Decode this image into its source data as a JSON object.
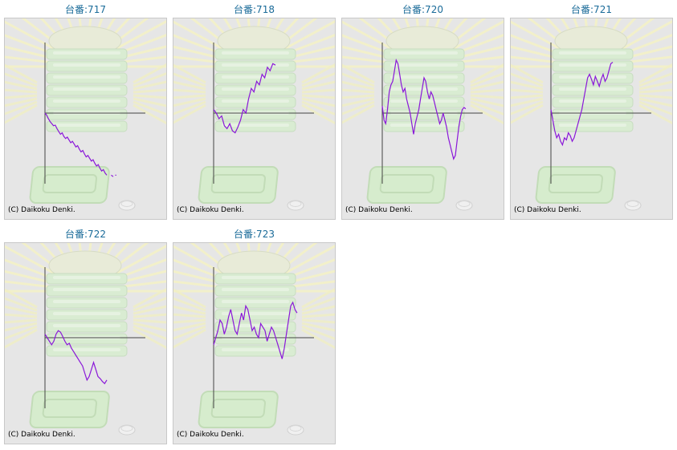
{
  "chart_data": [
    {
      "type": "line",
      "title": "台番:717",
      "xlim": [
        0,
        100
      ],
      "ylim": [
        -100,
        100
      ],
      "y": [
        0,
        -3,
        -8,
        -12,
        -15,
        -18,
        -17,
        -22,
        -26,
        -30,
        -28,
        -33,
        -36,
        -34,
        -38,
        -42,
        -40,
        -44,
        -48,
        -46,
        -51,
        -55,
        -53,
        -58,
        -62,
        -60,
        -64,
        -68,
        -66,
        -71,
        -75,
        -73,
        -78,
        -82,
        -80,
        -85,
        -88
      ],
      "extra": [
        {
          "x": [
            66,
            68
          ],
          "y": [
            -88,
            -90
          ]
        },
        {
          "x": [
            70,
            71
          ],
          "y": [
            -88,
            -88
          ]
        }
      ],
      "copyright": "(C) Daikoku Denki."
    },
    {
      "type": "line",
      "title": "台番:718",
      "xlim": [
        0,
        100
      ],
      "ylim": [
        -100,
        100
      ],
      "y": [
        5,
        0,
        -8,
        -4,
        -18,
        -22,
        -15,
        -25,
        -28,
        -20,
        -10,
        5,
        0,
        20,
        35,
        30,
        45,
        40,
        55,
        50,
        65,
        60,
        70,
        68
      ],
      "copyright": "(C) Daikoku Denki."
    },
    {
      "type": "line",
      "title": "台番:720",
      "xlim": [
        0,
        100
      ],
      "ylim": [
        -100,
        100
      ],
      "y": [
        10,
        -10,
        -15,
        5,
        30,
        40,
        45,
        60,
        75,
        70,
        55,
        40,
        30,
        35,
        20,
        10,
        0,
        -15,
        -30,
        -15,
        -5,
        5,
        20,
        35,
        50,
        45,
        30,
        20,
        30,
        25,
        15,
        5,
        -5,
        -15,
        -10,
        0,
        -10,
        -20,
        -35,
        -45,
        -55,
        -65,
        -60,
        -40,
        -20,
        -5,
        5,
        8,
        6
      ],
      "copyright": "(C) Daikoku Denki."
    },
    {
      "type": "line",
      "title": "台番:721",
      "xlim": [
        0,
        100
      ],
      "ylim": [
        -100,
        100
      ],
      "y": [
        5,
        -10,
        -25,
        -35,
        -30,
        -40,
        -45,
        -35,
        -38,
        -28,
        -32,
        -40,
        -35,
        -25,
        -15,
        -5,
        5,
        20,
        35,
        50,
        55,
        48,
        40,
        52,
        45,
        38,
        48,
        55,
        45,
        50,
        60,
        70,
        72
      ],
      "copyright": "(C) Daikoku Denki."
    },
    {
      "type": "line",
      "title": "台番:722",
      "xlim": [
        0,
        100
      ],
      "ylim": [
        -100,
        100
      ],
      "y": [
        5,
        0,
        -5,
        -10,
        -5,
        5,
        10,
        8,
        2,
        -5,
        -10,
        -8,
        -15,
        -20,
        -25,
        -30,
        -35,
        -40,
        -50,
        -60,
        -55,
        -45,
        -35,
        -45,
        -55,
        -58,
        -62,
        -65,
        -60
      ],
      "copyright": "(C) Daikoku Denki."
    },
    {
      "type": "line",
      "title": "台番:723",
      "xlim": [
        0,
        100
      ],
      "ylim": [
        -100,
        100
      ],
      "y": [
        -10,
        0,
        10,
        25,
        20,
        5,
        15,
        30,
        40,
        25,
        10,
        5,
        20,
        35,
        25,
        45,
        40,
        25,
        10,
        15,
        5,
        0,
        20,
        15,
        10,
        -5,
        5,
        15,
        10,
        0,
        -10,
        -20,
        -30,
        -15,
        5,
        25,
        45,
        50,
        40,
        35
      ],
      "copyright": "(C) Daikoku Denki."
    }
  ],
  "colors": {
    "line": "#8a17d9",
    "axis": "#444444",
    "title": "#1a6b99"
  }
}
